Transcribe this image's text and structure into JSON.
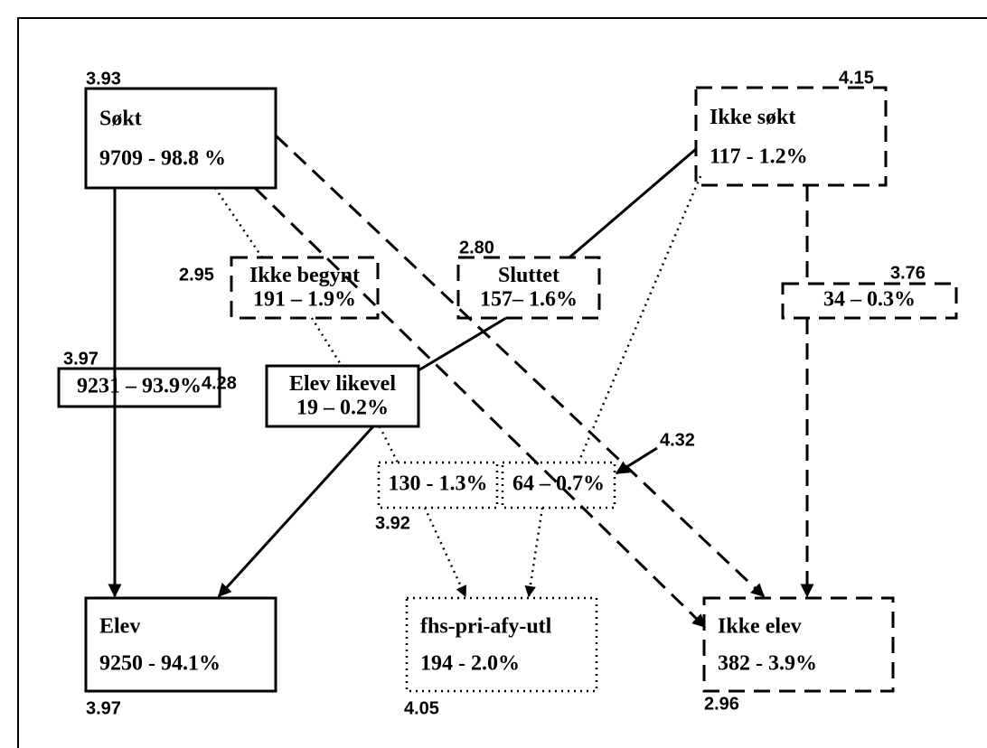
{
  "nodes": [
    {
      "title": "Søkt",
      "value": "9709  - 98.8 %",
      "score": "3.93"
    },
    {
      "title": "Ikke søkt",
      "value": "117  - 1.2%",
      "score": "4.15"
    },
    {
      "title": "Ikke begynt",
      "value": "191 – 1.9%",
      "score": "2.95"
    },
    {
      "title": "Sluttet",
      "value": "157– 1.6%",
      "score": "2.80"
    },
    {
      "value": "34 – 0.3%",
      "score": "3.76"
    },
    {
      "value": "9231 – 93.9%",
      "score": "3.97"
    },
    {
      "title": "Elev likevel",
      "value": "19 – 0.2%",
      "score": "4.28"
    },
    {
      "value": "130 - 1.3%",
      "score": "3.92"
    },
    {
      "value": "64 – 0.7%",
      "score": "4.32"
    },
    {
      "title": "Elev",
      "value": "9250  - 94.1%",
      "score": "3.97"
    },
    {
      "title": "fhs-pri-afy-utl",
      "value": "194  - 2.0%",
      "score": "4.05"
    },
    {
      "title": "Ikke elev",
      "value": "382  - 3.9%",
      "score": "2.96"
    }
  ]
}
